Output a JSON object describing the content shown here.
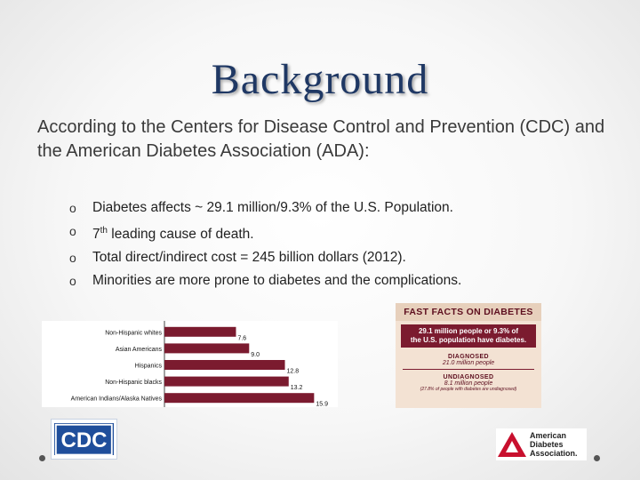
{
  "slide": {
    "title": "Background",
    "intro": "According to the Centers for Disease Control and Prevention (CDC) and the American Diabetes Association (ADA):",
    "bullet_marker": "o",
    "bullets": [
      {
        "pre": "Diabetes affects ~ 29.1 million/9.3% of the U.S. Population.",
        "sup": "",
        "post": ""
      },
      {
        "pre": "7",
        "sup": "th",
        "post": " leading cause of death."
      },
      {
        "pre": "Total direct/indirect cost = 245 billion dollars (2012).",
        "sup": "",
        "post": ""
      },
      {
        "pre": "Minorities are more prone to diabetes and the complications.",
        "sup": "",
        "post": ""
      }
    ]
  },
  "chart_data": {
    "type": "bar",
    "orientation": "horizontal",
    "categories": [
      "Non-Hispanic whites",
      "Asian Americans",
      "Hispanics",
      "Non-Hispanic blacks",
      "American Indians/Alaska Natives"
    ],
    "values": [
      7.6,
      9.0,
      12.8,
      13.2,
      15.9
    ],
    "value_labels": [
      "7.6",
      "9.0",
      "12.8",
      "13.2",
      "15.9"
    ],
    "bar_color": "#7b1b2f",
    "xlim": [
      0,
      17
    ],
    "grid": false,
    "title": "",
    "xlabel": "",
    "ylabel": ""
  },
  "fast_facts": {
    "header": "FAST FACTS ON DIABETES",
    "headline_line1": "29.1 million people or 9.3% of",
    "headline_line2": "the U.S. population have diabetes.",
    "diagnosed_label": "DIAGNOSED",
    "diagnosed_value": "21.0 million people",
    "undiagnosed_label": "UNDIAGNOSED",
    "undiagnosed_value": "8.1 million people",
    "undiagnosed_note": "(27.8% of people with diabetes are undiagnosed)"
  },
  "logos": {
    "cdc_text": "CDC",
    "ada_line1": "American",
    "ada_line2": "Diabetes",
    "ada_line3": "Association.",
    "cdc_color": "#1f4e9b",
    "ada_red": "#c8102e"
  },
  "colors": {
    "title": "#1f3864",
    "bar": "#7b1b2f",
    "fast_facts_bg": "#f3e2d3"
  }
}
